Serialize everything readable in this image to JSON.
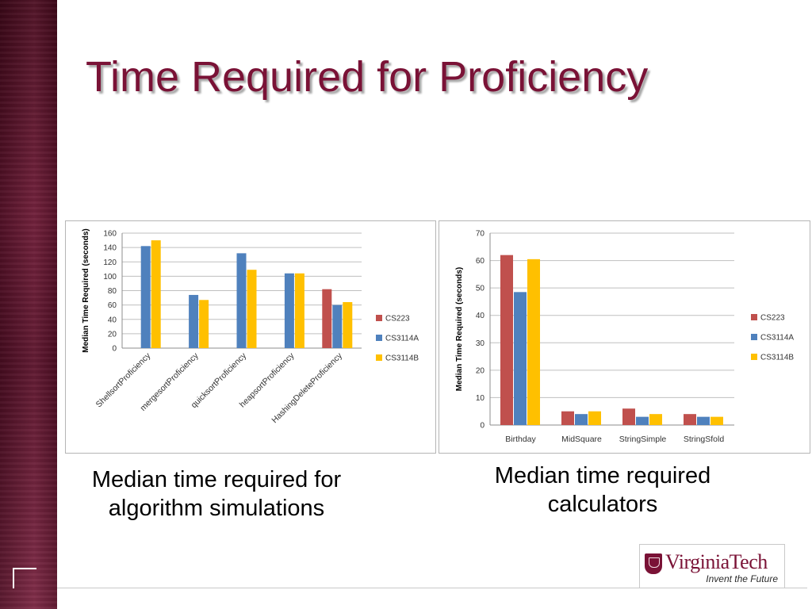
{
  "slide": {
    "title": "Time Required for Proficiency",
    "caption_left": "Median time required for algorithm simulations",
    "caption_right": "Median time required calculators",
    "logo_text": "VirginiaTech",
    "logo_tagline": "Invent the Future"
  },
  "colors": {
    "CS223": "#c0504d",
    "CS3114A": "#4f81bd",
    "CS3114B": "#ffc000",
    "title": "#7a1236"
  },
  "chart_data": [
    {
      "type": "bar",
      "title": "",
      "xlabel": "",
      "ylabel": "Median Time Required (seconds)",
      "ylim": [
        0,
        160
      ],
      "yticks": [
        0,
        20,
        40,
        60,
        80,
        100,
        120,
        140,
        160
      ],
      "grid": true,
      "legend": "right",
      "categories": [
        "ShellsortProficiency",
        "mergesortProficiency",
        "quicksortProficiency",
        "heapsortProficiency",
        "HashingDeleteProficiency"
      ],
      "series": [
        {
          "name": "CS223",
          "values": [
            null,
            null,
            null,
            null,
            82
          ]
        },
        {
          "name": "CS3114A",
          "values": [
            142,
            74,
            132,
            104,
            60
          ]
        },
        {
          "name": "CS3114B",
          "values": [
            150,
            67,
            109,
            104,
            64
          ]
        }
      ]
    },
    {
      "type": "bar",
      "title": "",
      "xlabel": "",
      "ylabel": "Median Time Required (seconds)",
      "ylim": [
        0,
        70
      ],
      "yticks": [
        0,
        10,
        20,
        30,
        40,
        50,
        60,
        70
      ],
      "grid": true,
      "legend": "right",
      "categories": [
        "Birthday",
        "MidSquare",
        "StringSimple",
        "StringSfold"
      ],
      "series": [
        {
          "name": "CS223",
          "values": [
            62,
            5,
            6,
            4
          ]
        },
        {
          "name": "CS3114A",
          "values": [
            48.5,
            4,
            3,
            3
          ]
        },
        {
          "name": "CS3114B",
          "values": [
            60.5,
            5,
            4,
            3
          ]
        }
      ]
    }
  ]
}
